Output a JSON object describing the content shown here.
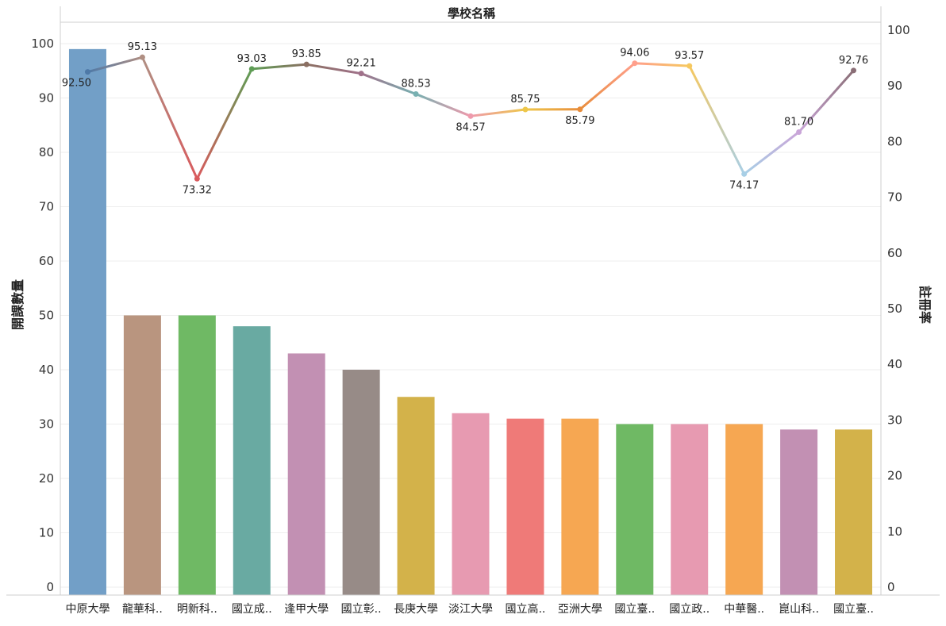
{
  "chart_data": {
    "type": "bar+line",
    "title": "學校名稱",
    "ylabel_left": "開課數量",
    "ylabel_right": "註冊率",
    "ylim_left": [
      0,
      100
    ],
    "ylim_right": [
      0,
      100
    ],
    "grid": true,
    "categories": [
      "中原大學",
      "龍華科..",
      "明新科..",
      "國立成..",
      "逢甲大學",
      "國立彰..",
      "長庚大學",
      "淡江大學",
      "國立高..",
      "亞洲大學",
      "國立臺..",
      "國立政..",
      "中華醫..",
      "崑山科..",
      "國立臺.."
    ],
    "bars": [
      99,
      50,
      50,
      48,
      43,
      40,
      35,
      32,
      31,
      31,
      30,
      30,
      30,
      29,
      29
    ],
    "line": [
      92.5,
      95.13,
      73.32,
      93.03,
      93.85,
      92.21,
      88.53,
      84.57,
      85.75,
      85.79,
      94.06,
      93.57,
      74.17,
      81.7,
      92.76
    ],
    "line_labels": [
      "92.50",
      "95.13",
      "73.32",
      "93.03",
      "93.85",
      "92.21",
      "88.53",
      "84.57",
      "85.75",
      "85.79",
      "94.06",
      "93.57",
      "74.17",
      "81.70",
      "92.76"
    ],
    "left_ticks": [
      "0",
      "10",
      "20",
      "30",
      "40",
      "50",
      "60",
      "70",
      "80",
      "90",
      "100"
    ],
    "right_ticks": [
      "0",
      "10",
      "20",
      "30",
      "40",
      "50",
      "60",
      "70",
      "80",
      "90",
      "100"
    ],
    "colors": [
      "#729fc7",
      "#b9957f",
      "#6fb964",
      "#69aaa2",
      "#c290b3",
      "#978b87",
      "#d3b24a",
      "#e79ab1",
      "#ef7a78",
      "#f6a752",
      "#6fb964",
      "#e79ab1",
      "#f6a752",
      "#c290b3",
      "#d3b24a"
    ],
    "line_point_colors": [
      "#4e79a7",
      "#b08f83",
      "#d95a5d",
      "#5e9d55",
      "#8b6f62",
      "#a0718a",
      "#78b0b1",
      "#ee9aac",
      "#eec74a",
      "#e88d3c",
      "#ff9f8c",
      "#f6c85f",
      "#a8cfe6",
      "#c9a5d8",
      "#8a6e76"
    ]
  }
}
